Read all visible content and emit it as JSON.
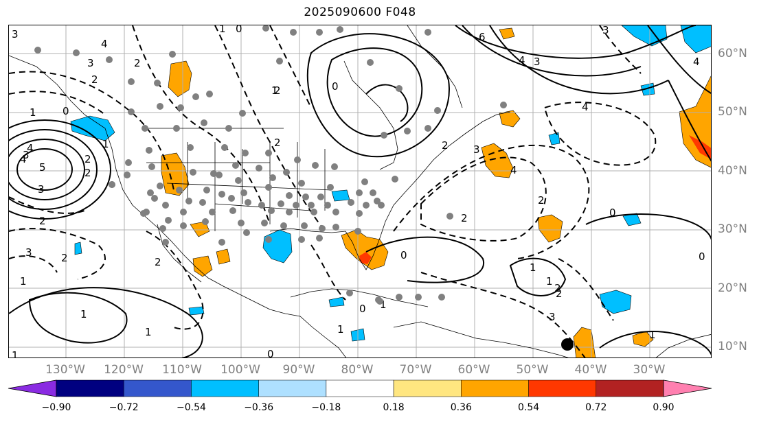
{
  "title": "2025090600 F048",
  "lon_labels": [
    "130°W",
    "120°W",
    "110°W",
    "100°W",
    "90°W",
    "80°W",
    "70°W",
    "60°W",
    "50°W",
    "40°W",
    "30°W"
  ],
  "lat_labels": [
    "60°N",
    "50°N",
    "40°N",
    "30°N",
    "20°N",
    "10°N"
  ],
  "colorbar": {
    "colors": [
      "#8a2be2",
      "#000080",
      "#3457cc",
      "#00bfff",
      "#aee0ff",
      "#ffffff",
      "#ffe680",
      "#ffa500",
      "#ff3800",
      "#b22222",
      "#ff80b0"
    ],
    "ticks": [
      "−0.90",
      "−0.72",
      "−0.54",
      "−0.36",
      "−0.18",
      "0.18",
      "0.36",
      "0.54",
      "0.72",
      "0.90"
    ]
  },
  "contour_labels": [
    "3",
    "4",
    "2",
    "3",
    "2",
    "1",
    "0",
    "1",
    "2",
    "3",
    "0",
    "1",
    "2",
    "0",
    "4",
    "3",
    "2",
    "4",
    "3",
    "4",
    "3",
    "6",
    "4",
    "2",
    "2",
    "4",
    "5",
    "3",
    "4",
    "2",
    "2",
    "1",
    "1",
    "2",
    "0",
    "2",
    "0",
    "2",
    "1",
    "1",
    "1",
    "0",
    "1",
    "0",
    "2",
    "3",
    "1",
    "1",
    "2",
    "0",
    "1",
    "3",
    "1"
  ],
  "marker": {
    "symbol": "black-dot"
  }
}
